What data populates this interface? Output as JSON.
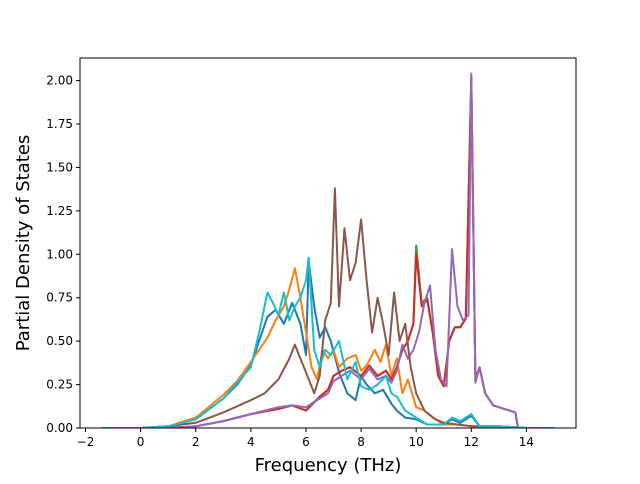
{
  "chart_data": {
    "type": "line",
    "title": "",
    "xlabel": "Frequency (THz)",
    "ylabel": "Partial Density of States",
    "xlim": [
      -2.2,
      15.8
    ],
    "ylim": [
      0,
      2.13
    ],
    "xticks": [
      -2,
      0,
      2,
      4,
      6,
      8,
      10,
      12,
      14
    ],
    "xtick_labels": [
      "−2",
      "0",
      "2",
      "4",
      "6",
      "8",
      "10",
      "12",
      "14"
    ],
    "yticks": [
      0,
      0.25,
      0.5,
      0.75,
      1.0,
      1.25,
      1.5,
      1.75,
      2.0
    ],
    "ytick_labels": [
      "0.00",
      "0.25",
      "0.50",
      "0.75",
      "1.00",
      "1.25",
      "1.50",
      "1.75",
      "2.00"
    ],
    "grid": false,
    "legend": "none",
    "series": [
      {
        "color": "#1f77b4",
        "points": [
          [
            -1.4,
            0
          ],
          [
            0,
            0
          ],
          [
            1,
            0.01
          ],
          [
            2,
            0.05
          ],
          [
            3,
            0.17
          ],
          [
            3.5,
            0.25
          ],
          [
            4,
            0.36
          ],
          [
            4.3,
            0.5
          ],
          [
            4.6,
            0.64
          ],
          [
            4.9,
            0.68
          ],
          [
            5.2,
            0.6
          ],
          [
            5.5,
            0.72
          ],
          [
            5.8,
            0.6
          ],
          [
            6.0,
            0.42
          ],
          [
            6.1,
            0.96
          ],
          [
            6.3,
            0.7
          ],
          [
            6.5,
            0.52
          ],
          [
            6.7,
            0.58
          ],
          [
            6.9,
            0.5
          ],
          [
            7.2,
            0.32
          ],
          [
            7.5,
            0.2
          ],
          [
            7.8,
            0.16
          ],
          [
            8.0,
            0.3
          ],
          [
            8.2,
            0.25
          ],
          [
            8.5,
            0.2
          ],
          [
            8.8,
            0.22
          ],
          [
            9.1,
            0.14
          ],
          [
            9.3,
            0.1
          ],
          [
            9.6,
            0.06
          ],
          [
            10.0,
            0.05
          ],
          [
            10.4,
            0.02
          ],
          [
            11.0,
            0.02
          ],
          [
            11.3,
            0.05
          ],
          [
            11.6,
            0.03
          ],
          [
            12.0,
            0.07
          ],
          [
            12.3,
            0.01
          ],
          [
            13.0,
            0.01
          ],
          [
            14.0,
            0
          ],
          [
            15.0,
            0
          ]
        ]
      },
      {
        "color": "#ff7f0e",
        "points": [
          [
            -1.4,
            0
          ],
          [
            0,
            0
          ],
          [
            1,
            0.01
          ],
          [
            2,
            0.06
          ],
          [
            3,
            0.19
          ],
          [
            3.5,
            0.27
          ],
          [
            4,
            0.38
          ],
          [
            4.3,
            0.45
          ],
          [
            4.6,
            0.52
          ],
          [
            4.9,
            0.62
          ],
          [
            5.2,
            0.7
          ],
          [
            5.4,
            0.8
          ],
          [
            5.6,
            0.92
          ],
          [
            5.8,
            0.75
          ],
          [
            6.0,
            0.55
          ],
          [
            6.2,
            0.35
          ],
          [
            6.4,
            0.28
          ],
          [
            6.6,
            0.45
          ],
          [
            6.8,
            0.4
          ],
          [
            7.0,
            0.45
          ],
          [
            7.2,
            0.35
          ],
          [
            7.5,
            0.4
          ],
          [
            7.8,
            0.42
          ],
          [
            8.0,
            0.33
          ],
          [
            8.2,
            0.36
          ],
          [
            8.5,
            0.45
          ],
          [
            8.7,
            0.38
          ],
          [
            8.9,
            0.48
          ],
          [
            9.1,
            0.3
          ],
          [
            9.3,
            0.4
          ],
          [
            9.5,
            0.2
          ],
          [
            9.7,
            0.28
          ],
          [
            10.0,
            0.12
          ],
          [
            10.3,
            0.1
          ],
          [
            10.6,
            0.06
          ],
          [
            11.0,
            0.02
          ],
          [
            11.5,
            0.02
          ],
          [
            12.0,
            0.01
          ],
          [
            13.0,
            0.01
          ],
          [
            14.0,
            0
          ],
          [
            15.0,
            0
          ]
        ]
      },
      {
        "color": "#2ca02c",
        "points": [
          [
            -1.4,
            0
          ],
          [
            0,
            0
          ],
          [
            1,
            0
          ],
          [
            2,
            0.01
          ],
          [
            3,
            0.04
          ],
          [
            4,
            0.08
          ],
          [
            5,
            0.11
          ],
          [
            5.5,
            0.13
          ],
          [
            6.0,
            0.1
          ],
          [
            6.5,
            0.18
          ],
          [
            6.8,
            0.22
          ],
          [
            7.0,
            0.3
          ],
          [
            7.3,
            0.33
          ],
          [
            7.6,
            0.35
          ],
          [
            8.0,
            0.3
          ],
          [
            8.3,
            0.36
          ],
          [
            8.6,
            0.3
          ],
          [
            8.9,
            0.33
          ],
          [
            9.1,
            0.28
          ],
          [
            9.3,
            0.35
          ],
          [
            9.5,
            0.45
          ],
          [
            9.7,
            0.5
          ],
          [
            9.9,
            0.6
          ],
          [
            10.0,
            1.05
          ],
          [
            10.2,
            0.72
          ],
          [
            10.4,
            0.75
          ],
          [
            10.6,
            0.55
          ],
          [
            10.8,
            0.3
          ],
          [
            11.0,
            0.24
          ],
          [
            11.2,
            0.5
          ],
          [
            11.4,
            0.58
          ],
          [
            11.6,
            0.58
          ],
          [
            11.8,
            0.63
          ],
          [
            12.0,
            2.02
          ],
          [
            12.15,
            0.28
          ],
          [
            12.3,
            0.35
          ],
          [
            12.5,
            0.2
          ],
          [
            12.8,
            0.13
          ],
          [
            13.2,
            0.11
          ],
          [
            13.6,
            0.09
          ],
          [
            13.7,
            0
          ],
          [
            14.0,
            0
          ],
          [
            15.0,
            0
          ]
        ]
      },
      {
        "color": "#d62728",
        "points": [
          [
            -1.4,
            0
          ],
          [
            0,
            0
          ],
          [
            1,
            0
          ],
          [
            2,
            0.01
          ],
          [
            3,
            0.04
          ],
          [
            4,
            0.08
          ],
          [
            5,
            0.11
          ],
          [
            5.5,
            0.13
          ],
          [
            6.0,
            0.1
          ],
          [
            6.5,
            0.18
          ],
          [
            6.8,
            0.22
          ],
          [
            7.0,
            0.3
          ],
          [
            7.3,
            0.33
          ],
          [
            7.6,
            0.35
          ],
          [
            8.0,
            0.3
          ],
          [
            8.3,
            0.36
          ],
          [
            8.6,
            0.3
          ],
          [
            8.9,
            0.33
          ],
          [
            9.1,
            0.28
          ],
          [
            9.3,
            0.35
          ],
          [
            9.5,
            0.45
          ],
          [
            9.7,
            0.5
          ],
          [
            9.9,
            0.6
          ],
          [
            10.0,
            1.0
          ],
          [
            10.2,
            0.7
          ],
          [
            10.4,
            0.74
          ],
          [
            10.6,
            0.55
          ],
          [
            10.8,
            0.3
          ],
          [
            11.0,
            0.24
          ],
          [
            11.2,
            0.5
          ],
          [
            11.4,
            0.58
          ],
          [
            11.6,
            0.58
          ],
          [
            11.8,
            0.63
          ],
          [
            12.0,
            2.02
          ],
          [
            12.15,
            0.28
          ],
          [
            12.3,
            0.35
          ],
          [
            12.5,
            0.2
          ],
          [
            12.8,
            0.13
          ],
          [
            13.2,
            0.11
          ],
          [
            13.6,
            0.09
          ],
          [
            13.7,
            0
          ],
          [
            14.0,
            0
          ],
          [
            15.0,
            0
          ]
        ]
      },
      {
        "color": "#9467bd",
        "points": [
          [
            -1.4,
            0
          ],
          [
            0,
            0
          ],
          [
            1,
            0
          ],
          [
            2,
            0.01
          ],
          [
            3,
            0.04
          ],
          [
            4,
            0.08
          ],
          [
            5,
            0.12
          ],
          [
            5.5,
            0.13
          ],
          [
            6.0,
            0.12
          ],
          [
            6.5,
            0.17
          ],
          [
            6.8,
            0.2
          ],
          [
            7.0,
            0.27
          ],
          [
            7.3,
            0.3
          ],
          [
            7.6,
            0.33
          ],
          [
            8.0,
            0.28
          ],
          [
            8.3,
            0.34
          ],
          [
            8.6,
            0.28
          ],
          [
            8.9,
            0.3
          ],
          [
            9.1,
            0.26
          ],
          [
            9.3,
            0.33
          ],
          [
            9.5,
            0.48
          ],
          [
            9.7,
            0.4
          ],
          [
            9.9,
            0.45
          ],
          [
            10.1,
            0.55
          ],
          [
            10.3,
            0.72
          ],
          [
            10.5,
            0.82
          ],
          [
            10.7,
            0.45
          ],
          [
            10.9,
            0.28
          ],
          [
            11.1,
            0.24
          ],
          [
            11.3,
            1.03
          ],
          [
            11.5,
            0.7
          ],
          [
            11.7,
            0.62
          ],
          [
            11.9,
            0.65
          ],
          [
            12.0,
            2.04
          ],
          [
            12.15,
            0.26
          ],
          [
            12.3,
            0.35
          ],
          [
            12.5,
            0.2
          ],
          [
            12.8,
            0.13
          ],
          [
            13.2,
            0.11
          ],
          [
            13.6,
            0.09
          ],
          [
            13.7,
            0
          ],
          [
            14.0,
            0
          ],
          [
            15.0,
            0
          ]
        ]
      },
      {
        "color": "#8c564b",
        "points": [
          [
            -1.4,
            0
          ],
          [
            0,
            0
          ],
          [
            1,
            0.01
          ],
          [
            2,
            0.03
          ],
          [
            3,
            0.09
          ],
          [
            4,
            0.16
          ],
          [
            4.5,
            0.2
          ],
          [
            5,
            0.28
          ],
          [
            5.4,
            0.4
          ],
          [
            5.6,
            0.48
          ],
          [
            5.8,
            0.4
          ],
          [
            6.0,
            0.32
          ],
          [
            6.3,
            0.2
          ],
          [
            6.5,
            0.3
          ],
          [
            6.7,
            0.62
          ],
          [
            6.9,
            0.72
          ],
          [
            7.05,
            1.38
          ],
          [
            7.2,
            0.7
          ],
          [
            7.4,
            1.15
          ],
          [
            7.6,
            0.85
          ],
          [
            7.8,
            0.95
          ],
          [
            8.0,
            1.2
          ],
          [
            8.2,
            0.85
          ],
          [
            8.4,
            0.55
          ],
          [
            8.6,
            0.75
          ],
          [
            8.8,
            0.6
          ],
          [
            9.0,
            0.42
          ],
          [
            9.2,
            0.78
          ],
          [
            9.4,
            0.5
          ],
          [
            9.6,
            0.6
          ],
          [
            9.8,
            0.35
          ],
          [
            10.0,
            0.2
          ],
          [
            10.3,
            0.1
          ],
          [
            10.7,
            0.05
          ],
          [
            11.0,
            0.03
          ],
          [
            12.0,
            0.01
          ],
          [
            13.0,
            0.01
          ],
          [
            14.0,
            0
          ],
          [
            15.0,
            0
          ]
        ]
      },
      {
        "color": "#17becf",
        "points": [
          [
            -1.4,
            0
          ],
          [
            0,
            0
          ],
          [
            1,
            0.01
          ],
          [
            2,
            0.05
          ],
          [
            3,
            0.17
          ],
          [
            3.5,
            0.26
          ],
          [
            4,
            0.35
          ],
          [
            4.3,
            0.55
          ],
          [
            4.6,
            0.78
          ],
          [
            4.8,
            0.72
          ],
          [
            5.0,
            0.65
          ],
          [
            5.2,
            0.78
          ],
          [
            5.4,
            0.62
          ],
          [
            5.6,
            0.7
          ],
          [
            5.8,
            0.75
          ],
          [
            6.0,
            0.85
          ],
          [
            6.1,
            0.98
          ],
          [
            6.3,
            0.45
          ],
          [
            6.5,
            0.35
          ],
          [
            6.7,
            0.45
          ],
          [
            6.9,
            0.42
          ],
          [
            7.2,
            0.5
          ],
          [
            7.5,
            0.28
          ],
          [
            7.8,
            0.38
          ],
          [
            8.0,
            0.24
          ],
          [
            8.3,
            0.22
          ],
          [
            8.6,
            0.25
          ],
          [
            8.9,
            0.3
          ],
          [
            9.1,
            0.2
          ],
          [
            9.3,
            0.18
          ],
          [
            9.6,
            0.1
          ],
          [
            10.0,
            0.06
          ],
          [
            10.4,
            0.02
          ],
          [
            11.0,
            0.02
          ],
          [
            11.3,
            0.06
          ],
          [
            11.6,
            0.04
          ],
          [
            12.0,
            0.08
          ],
          [
            12.3,
            0.01
          ],
          [
            13.0,
            0.01
          ],
          [
            14.0,
            0
          ],
          [
            15.0,
            0
          ]
        ]
      }
    ]
  }
}
